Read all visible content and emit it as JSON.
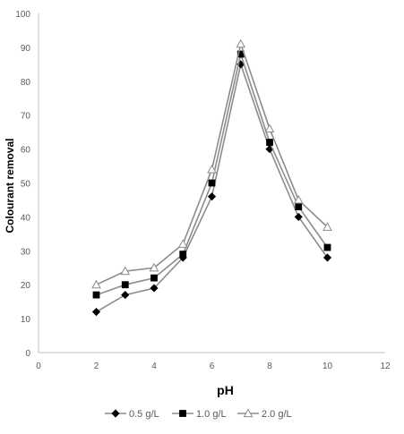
{
  "chart_data": {
    "type": "line",
    "title": "",
    "xlabel": "pH",
    "ylabel": "Colourant  removal",
    "xlim": [
      0,
      12
    ],
    "ylim": [
      0,
      100
    ],
    "x_ticks": [
      0,
      2,
      4,
      6,
      8,
      10,
      12
    ],
    "y_ticks": [
      0,
      10,
      20,
      30,
      40,
      50,
      60,
      70,
      80,
      90,
      100
    ],
    "grid": false,
    "legend_position": "bottom",
    "x": [
      2,
      3,
      4,
      5,
      6,
      7,
      8,
      9,
      10
    ],
    "series": [
      {
        "name": "0.5 g/L",
        "marker": "diamond",
        "marker_fill": "#000000",
        "values": [
          12,
          17,
          19,
          28,
          46,
          85,
          60,
          40,
          28
        ]
      },
      {
        "name": "1.0 g/L",
        "marker": "square",
        "marker_fill": "#000000",
        "values": [
          17,
          20,
          22,
          29,
          50,
          88,
          62,
          43,
          31
        ]
      },
      {
        "name": "2.0 g/L",
        "marker": "triangle",
        "marker_fill": "#ffffff",
        "values": [
          20,
          24,
          25,
          32,
          54,
          91,
          66,
          45,
          37
        ]
      }
    ],
    "colors": {
      "line": "#8c8c8c",
      "marker_stroke": "#000000",
      "hollow_marker_stroke": "#8c8c8c",
      "axis": "#bfbfbf",
      "text": "#595959"
    }
  }
}
